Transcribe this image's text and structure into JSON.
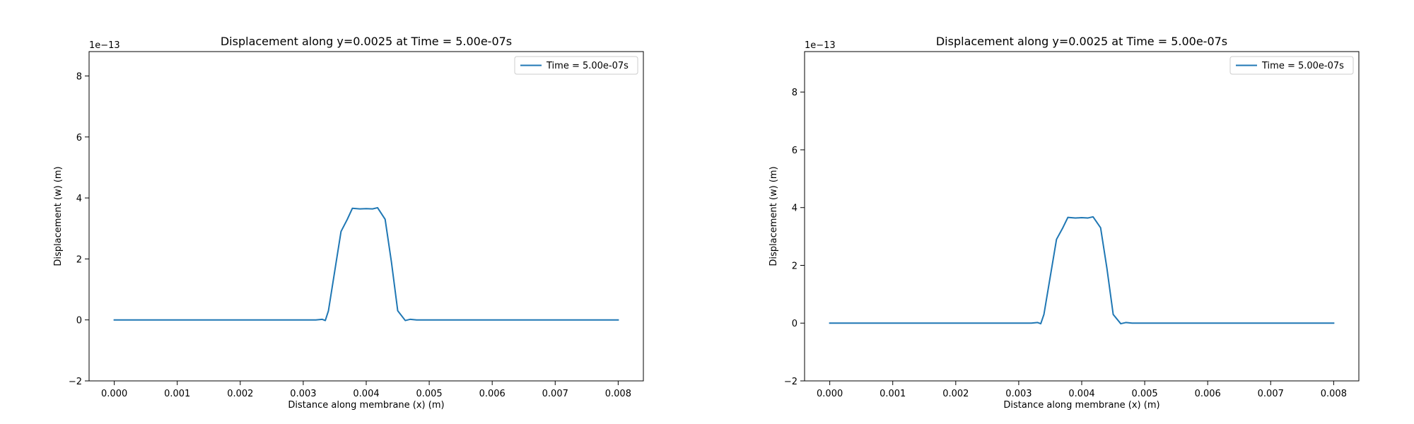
{
  "chart_data": [
    {
      "type": "line",
      "title": "Displacement along y=0.0025 at Time = 5.00e-07s",
      "xlabel": "Distance along membrane (x) (m)",
      "ylabel": "Displacement (w) (m)",
      "y_offset_text": "1e−13",
      "y_scale": 1e-13,
      "xlim": [
        -0.0004,
        0.0084
      ],
      "ylim": [
        -2.0,
        8.8
      ],
      "xticks": [
        0.0,
        0.001,
        0.002,
        0.003,
        0.004,
        0.005,
        0.006,
        0.007,
        0.008
      ],
      "xtick_labels": [
        "0.000",
        "0.001",
        "0.002",
        "0.003",
        "0.004",
        "0.005",
        "0.006",
        "0.007",
        "0.008"
      ],
      "yticks": [
        -2,
        0,
        2,
        4,
        6,
        8
      ],
      "ytick_labels": [
        "−2",
        "0",
        "2",
        "4",
        "6",
        "8"
      ],
      "grid": false,
      "legend_position": "top-right",
      "series": [
        {
          "name": "Time = 5.00e-07s",
          "color": "#1f77b4",
          "x": [
            0.0,
            0.0005,
            0.001,
            0.0015,
            0.002,
            0.0025,
            0.003,
            0.0032,
            0.0033,
            0.00335,
            0.0034,
            0.0035,
            0.0036,
            0.0037,
            0.00378,
            0.0039,
            0.004,
            0.0041,
            0.00418,
            0.0043,
            0.0044,
            0.0045,
            0.00462,
            0.0047,
            0.0048,
            0.005,
            0.0055,
            0.006,
            0.0065,
            0.007,
            0.0075,
            0.008
          ],
          "y": [
            0,
            0,
            0,
            0,
            0,
            0,
            0,
            0,
            0.02,
            -0.02,
            0.3,
            1.6,
            2.9,
            3.3,
            3.66,
            3.64,
            3.65,
            3.64,
            3.68,
            3.3,
            1.9,
            0.3,
            -0.02,
            0.02,
            0,
            0,
            0,
            0,
            0,
            0,
            0,
            0
          ]
        }
      ]
    },
    {
      "type": "line",
      "title": "Displacement along y=0.0025 at Time = 5.00e-07s",
      "xlabel": "Distance along membrane (x) (m)",
      "ylabel": "Displacement (w) (m)",
      "y_offset_text": "1e−13",
      "y_scale": 1e-13,
      "xlim": [
        -0.0004,
        0.0084
      ],
      "ylim": [
        -2.0,
        9.4
      ],
      "xticks": [
        0.0,
        0.001,
        0.002,
        0.003,
        0.004,
        0.005,
        0.006,
        0.007,
        0.008
      ],
      "xtick_labels": [
        "0.000",
        "0.001",
        "0.002",
        "0.003",
        "0.004",
        "0.005",
        "0.006",
        "0.007",
        "0.008"
      ],
      "yticks": [
        -2,
        0,
        2,
        4,
        6,
        8
      ],
      "ytick_labels": [
        "−2",
        "0",
        "2",
        "4",
        "6",
        "8"
      ],
      "grid": false,
      "legend_position": "top-right",
      "series": [
        {
          "name": "Time = 5.00e-07s",
          "color": "#1f77b4",
          "x": [
            0.0,
            0.0005,
            0.001,
            0.0015,
            0.002,
            0.0025,
            0.003,
            0.0032,
            0.0033,
            0.00335,
            0.0034,
            0.0035,
            0.0036,
            0.0037,
            0.00378,
            0.0039,
            0.004,
            0.0041,
            0.00418,
            0.0043,
            0.0044,
            0.0045,
            0.00462,
            0.0047,
            0.0048,
            0.005,
            0.0055,
            0.006,
            0.0065,
            0.007,
            0.0075,
            0.008
          ],
          "y": [
            0,
            0,
            0,
            0,
            0,
            0,
            0,
            0,
            0.02,
            -0.02,
            0.3,
            1.6,
            2.9,
            3.3,
            3.66,
            3.64,
            3.65,
            3.64,
            3.68,
            3.3,
            1.9,
            0.3,
            -0.02,
            0.02,
            0,
            0,
            0,
            0,
            0,
            0,
            0,
            0
          ]
        }
      ]
    }
  ]
}
